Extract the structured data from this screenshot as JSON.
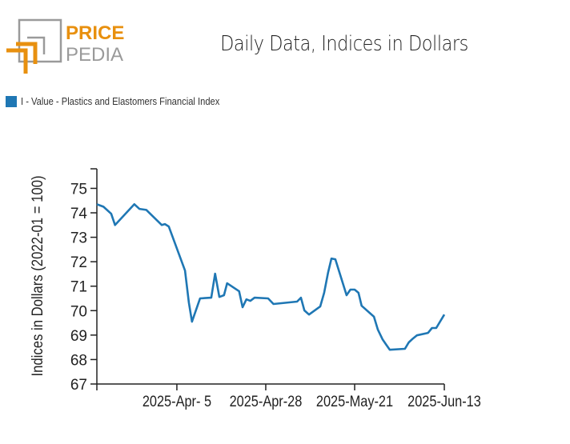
{
  "brand": {
    "line1": "PRICE",
    "line2": "PEDIA",
    "orange": "#e8900f",
    "gray": "#9a9a9a"
  },
  "chart_data": {
    "type": "line",
    "title": "Daily Data, Indices in Dollars",
    "xlabel": "",
    "ylabel": "Indices in Dollars (2022-01 = 100)",
    "ylim": [
      67,
      75.8
    ],
    "xlim_days_from_2025_Apr_5": [
      -20.7,
      69.2
    ],
    "yticks": [
      67,
      68,
      69,
      70,
      71,
      72,
      73,
      74,
      75
    ],
    "xticks": [
      {
        "day": 0,
        "label": "2025-Apr- 5"
      },
      {
        "day": 23,
        "label": "2025-Apr-28"
      },
      {
        "day": 46,
        "label": "2025-May-21"
      },
      {
        "day": 69.2,
        "label": "2025-Jun-13"
      }
    ],
    "legend_position": "top-left",
    "grid": false,
    "series": [
      {
        "name": "I - Value - Plastics and Elastomers Financial Index",
        "color": "#1f77b4",
        "x_days_from_2025_Apr_5": [
          -20.7,
          -19,
          -17,
          -16,
          -11,
          -9.7,
          -7.9,
          -3.9,
          -3.1,
          -2.1,
          2.1,
          3.1,
          3.9,
          6,
          8.9,
          9.9,
          11,
          12.2,
          13,
          16.1,
          17,
          18,
          19,
          20.1,
          23.6,
          25,
          31.1,
          32.1,
          33,
          34.2,
          37.1,
          38.1,
          39.1,
          40,
          41,
          43.9,
          44.9,
          46,
          47,
          47.8,
          51,
          52,
          53.2,
          54.2,
          55.1,
          59,
          60,
          61.1,
          62.1,
          65,
          66,
          67.1,
          69.2
        ],
        "values": [
          74.35,
          74.25,
          73.96,
          73.5,
          74.35,
          74.16,
          74.12,
          73.5,
          73.54,
          73.44,
          71.64,
          70.33,
          69.55,
          70.5,
          70.53,
          71.51,
          70.56,
          70.63,
          71.12,
          70.79,
          70.14,
          70.46,
          70.4,
          70.53,
          70.5,
          70.27,
          70.37,
          70.53,
          70.01,
          69.84,
          70.17,
          70.73,
          71.54,
          72.13,
          72.1,
          70.63,
          70.86,
          70.86,
          70.73,
          70.2,
          69.75,
          69.22,
          68.83,
          68.6,
          68.4,
          68.44,
          68.7,
          68.86,
          68.99,
          69.09,
          69.29,
          69.29,
          69.84
        ]
      }
    ]
  }
}
